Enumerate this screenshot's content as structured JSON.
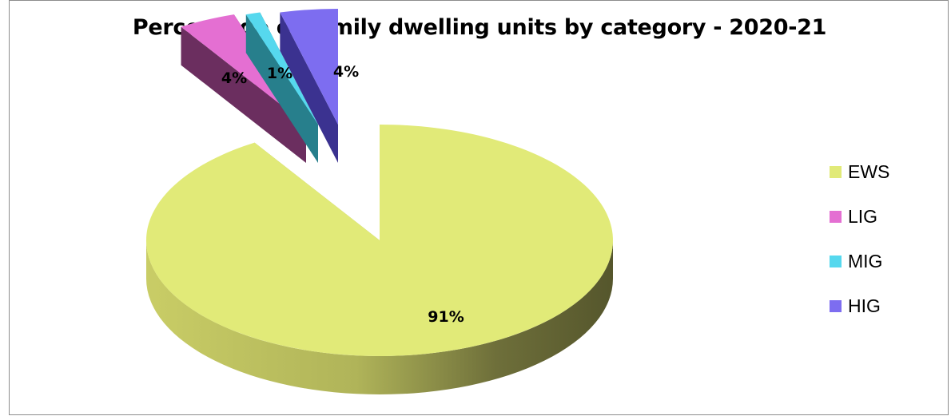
{
  "chart_data": {
    "type": "pie",
    "title": "Percentage of family dwelling units by category - 2020-21",
    "categories": [
      "EWS",
      "LIG",
      "MIG",
      "HIG"
    ],
    "values": [
      91,
      4,
      1,
      4
    ],
    "labels": [
      "91%",
      "4%",
      "1%",
      "4%"
    ],
    "colors": [
      "#e1ea78",
      "#e46fd2",
      "#56d8ee",
      "#7d6df0"
    ],
    "side_colors": [
      "#a8ad50",
      "#6b2e5f",
      "#277f8c",
      "#3b3290"
    ],
    "legend_position": "right",
    "three_d": true,
    "exploded": [
      "LIG",
      "MIG",
      "HIG"
    ]
  }
}
